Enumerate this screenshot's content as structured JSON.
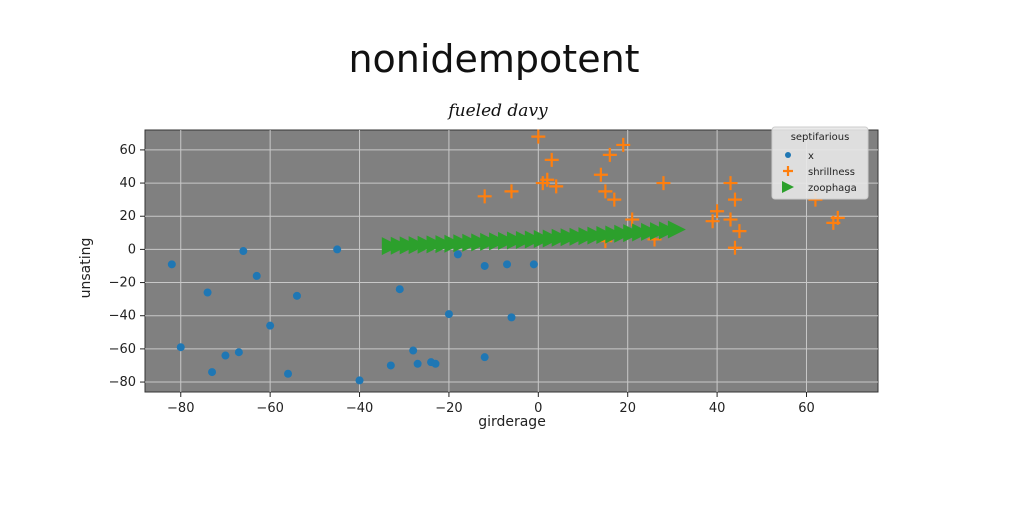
{
  "chart_data": {
    "type": "scatter",
    "title": "nonidempotent",
    "subtitle": "fueled davy",
    "xlabel": "girderage",
    "ylabel": "unsating",
    "xlim": [
      -88,
      76
    ],
    "ylim": [
      -86,
      72
    ],
    "xticks": [
      -80,
      -60,
      -40,
      -20,
      0,
      20,
      40,
      60
    ],
    "yticks": [
      -80,
      -60,
      -40,
      -20,
      0,
      20,
      40,
      60
    ],
    "xtick_labels": [
      "−80",
      "−60",
      "−40",
      "−20",
      "0",
      "20",
      "40",
      "60"
    ],
    "ytick_labels": [
      "−80",
      "−60",
      "−40",
      "−20",
      "0",
      "20",
      "40",
      "60"
    ],
    "grid": true,
    "background_color": "#808080",
    "legend": {
      "title": "septifarious",
      "placement": "top-right",
      "entries": [
        "x",
        "shrillness",
        "zoophaga"
      ]
    },
    "series": [
      {
        "name": "x",
        "marker": "circle",
        "color": "#1f77b4",
        "points": [
          [
            -82,
            -9
          ],
          [
            -74,
            -26
          ],
          [
            -73,
            -74
          ],
          [
            -70,
            -64
          ],
          [
            -67,
            -62
          ],
          [
            -66,
            -1
          ],
          [
            -63,
            -16
          ],
          [
            -60,
            -46
          ],
          [
            -56,
            -75
          ],
          [
            -54,
            -28
          ],
          [
            -45,
            0
          ],
          [
            -40,
            -79
          ],
          [
            -33,
            -70
          ],
          [
            -31,
            -24
          ],
          [
            -28,
            -61
          ],
          [
            -27,
            -69
          ],
          [
            -24,
            -68
          ],
          [
            -23,
            -69
          ],
          [
            -20,
            -39
          ],
          [
            -18,
            -3
          ],
          [
            -12,
            -10
          ],
          [
            -12,
            -65
          ],
          [
            -7,
            -9
          ],
          [
            -6,
            -41
          ],
          [
            -1,
            -9
          ],
          [
            -80,
            -59
          ]
        ]
      },
      {
        "name": "shrillness",
        "marker": "plus",
        "color": "#ff7f0e",
        "points": [
          [
            -12,
            32
          ],
          [
            -6,
            35
          ],
          [
            0,
            68
          ],
          [
            1,
            40
          ],
          [
            2,
            42
          ],
          [
            3,
            54
          ],
          [
            4,
            38
          ],
          [
            14,
            45
          ],
          [
            15,
            35
          ],
          [
            16,
            57
          ],
          [
            17,
            30
          ],
          [
            19,
            63
          ],
          [
            21,
            18
          ],
          [
            26,
            6
          ],
          [
            28,
            40
          ],
          [
            39,
            17
          ],
          [
            40,
            23
          ],
          [
            43,
            40
          ],
          [
            43,
            18
          ],
          [
            44,
            1
          ],
          [
            44,
            30
          ],
          [
            45,
            11
          ],
          [
            62,
            30
          ],
          [
            66,
            16
          ],
          [
            67,
            19
          ],
          [
            15,
            5
          ]
        ]
      },
      {
        "name": "zoophaga",
        "marker": "triangle-right",
        "color": "#2ca02c",
        "points": [
          [
            -33,
            2.0
          ],
          [
            -31,
            2.2
          ],
          [
            -29,
            2.4
          ],
          [
            -27,
            2.6
          ],
          [
            -25,
            2.8
          ],
          [
            -23,
            3.0
          ],
          [
            -21,
            3.2
          ],
          [
            -19,
            3.4
          ],
          [
            -17,
            3.7
          ],
          [
            -15,
            4.0
          ],
          [
            -13,
            4.2
          ],
          [
            -11,
            4.5
          ],
          [
            -9,
            4.8
          ],
          [
            -7,
            5.1
          ],
          [
            -5,
            5.4
          ],
          [
            -3,
            5.7
          ],
          [
            -1,
            6.0
          ],
          [
            1,
            6.3
          ],
          [
            3,
            6.6
          ],
          [
            5,
            7.0
          ],
          [
            7,
            7.3
          ],
          [
            9,
            7.6
          ],
          [
            11,
            8.0
          ],
          [
            13,
            8.3
          ],
          [
            15,
            8.7
          ],
          [
            17,
            9.0
          ],
          [
            19,
            9.4
          ],
          [
            21,
            9.8
          ],
          [
            23,
            10.2
          ],
          [
            25,
            10.6
          ],
          [
            27,
            11.0
          ],
          [
            29,
            11.5
          ],
          [
            31,
            12.0
          ]
        ]
      }
    ]
  }
}
